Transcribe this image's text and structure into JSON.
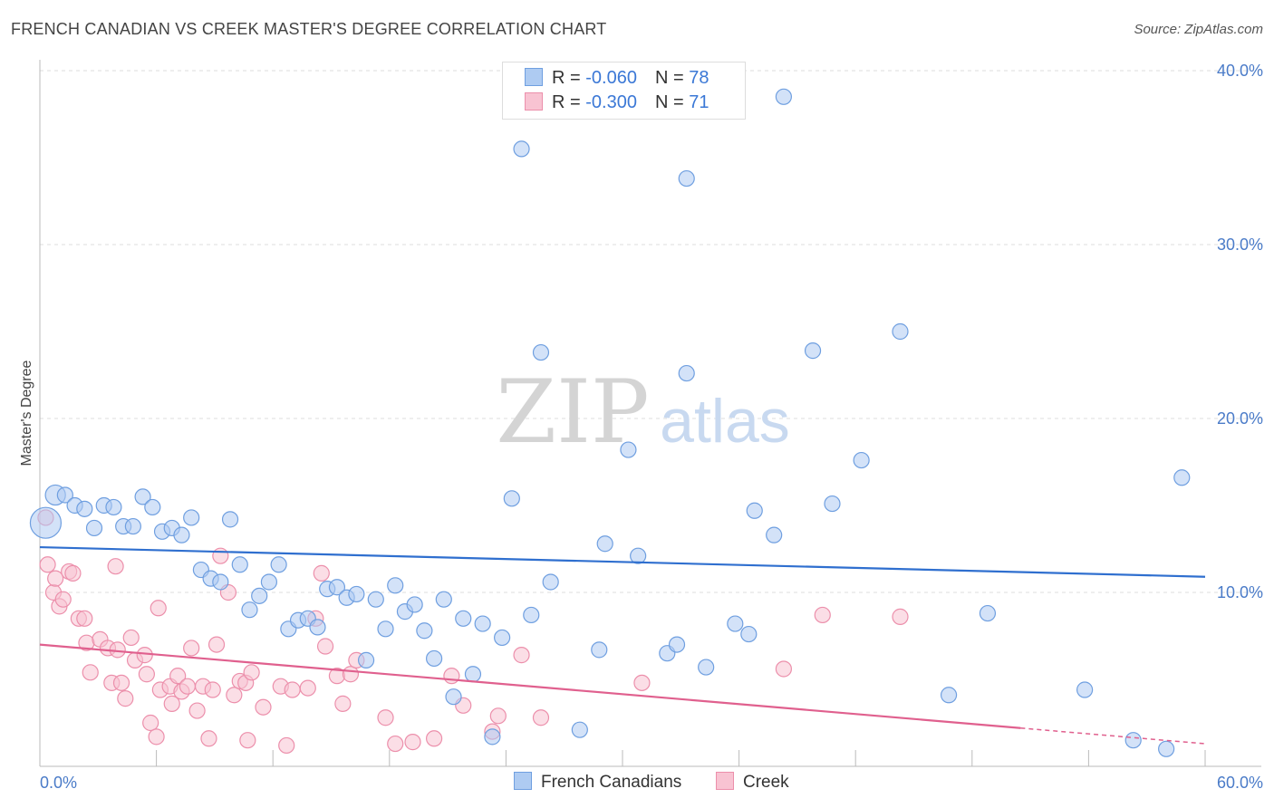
{
  "title": "FRENCH CANADIAN VS CREEK MASTER'S DEGREE CORRELATION CHART",
  "source": "Source: ZipAtlas.com",
  "watermark": {
    "zip": "ZIP",
    "atlas": "atlas"
  },
  "legend": {
    "rows": [
      {
        "swatch_color": "#aecbf2",
        "border_color": "#6f9fe0",
        "r_label": "R = ",
        "r_value": "-0.060",
        "n_label": "N = ",
        "n_value": "78"
      },
      {
        "swatch_color": "#f8c3d2",
        "border_color": "#ec8fab",
        "r_label": "R = ",
        "r_value": "-0.300",
        "n_label": "N = ",
        "n_value": "71"
      }
    ]
  },
  "bottom_legend": [
    {
      "label": "French Canadians",
      "swatch_color": "#aecbf2",
      "border_color": "#6f9fe0"
    },
    {
      "label": "Creek",
      "swatch_color": "#f8c3d2",
      "border_color": "#ec8fab"
    }
  ],
  "colors": {
    "blue_fill": "#aecbf2",
    "blue_stroke": "#6f9fe0",
    "blue_line": "#2f6fcf",
    "pink_fill": "#f8c3d2",
    "pink_stroke": "#ec8fab",
    "pink_line": "#e0608e",
    "tick_text": "#4a7bc8",
    "grid": "#dddddd"
  },
  "chart_data": {
    "type": "scatter",
    "title": "FRENCH CANADIAN VS CREEK MASTER'S DEGREE CORRELATION CHART",
    "xlabel": "",
    "ylabel": "Master's Degree",
    "xlim": [
      0,
      60
    ],
    "ylim": [
      0,
      40
    ],
    "x_tick_labels": [
      {
        "value": 0,
        "label": "0.0%"
      },
      {
        "value": 60,
        "label": "60.0%"
      }
    ],
    "y_tick_labels": [
      {
        "value": 10,
        "label": "10.0%"
      },
      {
        "value": 20,
        "label": "20.0%"
      },
      {
        "value": 30,
        "label": "30.0%"
      },
      {
        "value": 40,
        "label": "40.0%"
      }
    ],
    "series": [
      {
        "name": "French Canadians",
        "color": "#aecbf2",
        "r": -0.06,
        "n": 78,
        "trend": {
          "x": [
            0,
            60
          ],
          "y": [
            12.6,
            10.9
          ]
        },
        "points": [
          [
            0.3,
            14.0,
            2.0
          ],
          [
            0.8,
            15.6,
            1.3
          ],
          [
            1.3,
            15.6,
            1.0
          ],
          [
            1.8,
            15.0,
            1.0
          ],
          [
            2.3,
            14.8,
            1.0
          ],
          [
            2.8,
            13.7,
            1.0
          ],
          [
            3.3,
            15.0,
            1.0
          ],
          [
            3.8,
            14.9,
            1.0
          ],
          [
            4.3,
            13.8,
            1.0
          ],
          [
            4.8,
            13.8,
            1.0
          ],
          [
            5.3,
            15.5,
            1.0
          ],
          [
            5.8,
            14.9,
            1.0
          ],
          [
            6.3,
            13.5,
            1.0
          ],
          [
            6.8,
            13.7,
            1.0
          ],
          [
            7.3,
            13.3,
            1.0
          ],
          [
            7.8,
            14.3,
            1.0
          ],
          [
            8.3,
            11.3,
            1.0
          ],
          [
            8.8,
            10.8,
            1.0
          ],
          [
            9.3,
            10.6,
            1.0
          ],
          [
            9.8,
            14.2,
            1.0
          ],
          [
            10.3,
            11.6,
            1.0
          ],
          [
            10.8,
            9.0,
            1.0
          ],
          [
            11.3,
            9.8,
            1.0
          ],
          [
            11.8,
            10.6,
            1.0
          ],
          [
            12.3,
            11.6,
            1.0
          ],
          [
            12.8,
            7.9,
            1.0
          ],
          [
            13.3,
            8.4,
            1.0
          ],
          [
            13.8,
            8.5,
            1.0
          ],
          [
            14.3,
            8.0,
            1.0
          ],
          [
            14.8,
            10.2,
            1.0
          ],
          [
            15.3,
            10.3,
            1.0
          ],
          [
            15.8,
            9.7,
            1.0
          ],
          [
            16.3,
            9.9,
            1.0
          ],
          [
            16.8,
            6.1,
            1.0
          ],
          [
            17.3,
            9.6,
            1.0
          ],
          [
            17.8,
            7.9,
            1.0
          ],
          [
            18.3,
            10.4,
            1.0
          ],
          [
            18.8,
            8.9,
            1.0
          ],
          [
            19.3,
            9.3,
            1.0
          ],
          [
            19.8,
            7.8,
            1.0
          ],
          [
            20.3,
            6.2,
            1.0
          ],
          [
            20.8,
            9.6,
            1.0
          ],
          [
            21.3,
            4.0,
            1.0
          ],
          [
            21.8,
            8.5,
            1.0
          ],
          [
            22.3,
            5.3,
            1.0
          ],
          [
            22.8,
            8.2,
            1.0
          ],
          [
            23.3,
            1.7,
            1.0
          ],
          [
            23.8,
            7.4,
            1.0
          ],
          [
            24.3,
            15.4,
            1.0
          ],
          [
            24.8,
            35.5,
            1.0
          ],
          [
            25.3,
            8.7,
            1.0
          ],
          [
            25.8,
            23.8,
            1.0
          ],
          [
            26.3,
            10.6,
            1.0
          ],
          [
            27.8,
            2.1,
            1.0
          ],
          [
            28.8,
            6.7,
            1.0
          ],
          [
            29.1,
            12.8,
            1.0
          ],
          [
            30.3,
            18.2,
            1.0
          ],
          [
            30.8,
            12.1,
            1.0
          ],
          [
            32.3,
            6.5,
            1.0
          ],
          [
            32.8,
            7.0,
            1.0
          ],
          [
            33.3,
            33.8,
            1.0
          ],
          [
            33.3,
            22.6,
            1.0
          ],
          [
            34.3,
            5.7,
            1.0
          ],
          [
            35.8,
            8.2,
            1.0
          ],
          [
            36.5,
            7.6,
            1.0
          ],
          [
            36.8,
            14.7,
            1.0
          ],
          [
            37.8,
            13.3,
            1.0
          ],
          [
            38.3,
            38.5,
            1.0
          ],
          [
            39.8,
            23.9,
            1.0
          ],
          [
            40.8,
            15.1,
            1.0
          ],
          [
            42.3,
            17.6,
            1.0
          ],
          [
            44.3,
            25.0,
            1.0
          ],
          [
            46.8,
            4.1,
            1.0
          ],
          [
            48.8,
            8.8,
            1.0
          ],
          [
            53.8,
            4.4,
            1.0
          ],
          [
            56.3,
            1.5,
            1.0
          ],
          [
            58.0,
            1.0,
            1.0
          ],
          [
            58.8,
            16.6,
            1.0
          ]
        ]
      },
      {
        "name": "Creek",
        "color": "#f8c3d2",
        "r": -0.3,
        "n": 71,
        "trend": {
          "x": [
            0,
            50.5
          ],
          "y": [
            7.0,
            2.2
          ]
        },
        "trend_dashed": {
          "x": [
            50.5,
            60
          ],
          "y": [
            2.2,
            1.3
          ]
        },
        "points": [
          [
            0.3,
            14.3,
            1.0
          ],
          [
            0.4,
            11.6,
            1.0
          ],
          [
            0.7,
            10.0,
            1.0
          ],
          [
            0.8,
            10.8,
            1.0
          ],
          [
            1.0,
            9.2,
            1.0
          ],
          [
            1.2,
            9.6,
            1.0
          ],
          [
            1.5,
            11.2,
            1.0
          ],
          [
            1.7,
            11.1,
            1.0
          ],
          [
            2.0,
            8.5,
            1.0
          ],
          [
            2.3,
            8.5,
            1.0
          ],
          [
            2.4,
            7.1,
            1.0
          ],
          [
            2.6,
            5.4,
            1.0
          ],
          [
            3.1,
            7.3,
            1.0
          ],
          [
            3.5,
            6.8,
            1.0
          ],
          [
            3.7,
            4.8,
            1.0
          ],
          [
            3.9,
            11.5,
            1.0
          ],
          [
            4.0,
            6.7,
            1.0
          ],
          [
            4.2,
            4.8,
            1.0
          ],
          [
            4.4,
            3.9,
            1.0
          ],
          [
            4.7,
            7.4,
            1.0
          ],
          [
            4.9,
            6.1,
            1.0
          ],
          [
            5.4,
            6.4,
            1.0
          ],
          [
            5.5,
            5.3,
            1.0
          ],
          [
            5.7,
            2.5,
            1.0
          ],
          [
            6.1,
            9.1,
            1.0
          ],
          [
            6.0,
            1.7,
            1.0
          ],
          [
            6.2,
            4.4,
            1.0
          ],
          [
            6.7,
            4.6,
            1.0
          ],
          [
            6.8,
            3.6,
            1.0
          ],
          [
            7.1,
            5.2,
            1.0
          ],
          [
            7.3,
            4.3,
            1.0
          ],
          [
            7.6,
            4.6,
            1.0
          ],
          [
            7.8,
            6.8,
            1.0
          ],
          [
            8.1,
            3.2,
            1.0
          ],
          [
            8.4,
            4.6,
            1.0
          ],
          [
            8.7,
            1.6,
            1.0
          ],
          [
            8.9,
            4.4,
            1.0
          ],
          [
            9.1,
            7.0,
            1.0
          ],
          [
            9.3,
            12.1,
            1.0
          ],
          [
            9.7,
            10.0,
            1.0
          ],
          [
            10.0,
            4.1,
            1.0
          ],
          [
            10.3,
            4.9,
            1.0
          ],
          [
            10.6,
            4.8,
            1.0
          ],
          [
            10.9,
            5.4,
            1.0
          ],
          [
            10.7,
            1.5,
            1.0
          ],
          [
            11.5,
            3.4,
            1.0
          ],
          [
            12.4,
            4.6,
            1.0
          ],
          [
            12.7,
            1.2,
            1.0
          ],
          [
            13.0,
            4.4,
            1.0
          ],
          [
            13.8,
            4.5,
            1.0
          ],
          [
            14.2,
            8.5,
            1.0
          ],
          [
            14.5,
            11.1,
            1.0
          ],
          [
            14.7,
            6.9,
            1.0
          ],
          [
            15.3,
            5.2,
            1.0
          ],
          [
            15.6,
            3.6,
            1.0
          ],
          [
            16.0,
            5.3,
            1.0
          ],
          [
            16.3,
            6.1,
            1.0
          ],
          [
            17.8,
            2.8,
            1.0
          ],
          [
            18.3,
            1.3,
            1.0
          ],
          [
            19.2,
            1.4,
            1.0
          ],
          [
            20.3,
            1.6,
            1.0
          ],
          [
            21.2,
            5.2,
            1.0
          ],
          [
            21.8,
            3.5,
            1.0
          ],
          [
            23.3,
            2.0,
            1.0
          ],
          [
            23.6,
            2.9,
            1.0
          ],
          [
            24.8,
            6.4,
            1.0
          ],
          [
            25.8,
            2.8,
            1.0
          ],
          [
            31.0,
            4.8,
            1.0
          ],
          [
            38.3,
            5.6,
            1.0
          ],
          [
            40.3,
            8.7,
            1.0
          ],
          [
            44.3,
            8.6,
            1.0
          ]
        ]
      }
    ]
  }
}
